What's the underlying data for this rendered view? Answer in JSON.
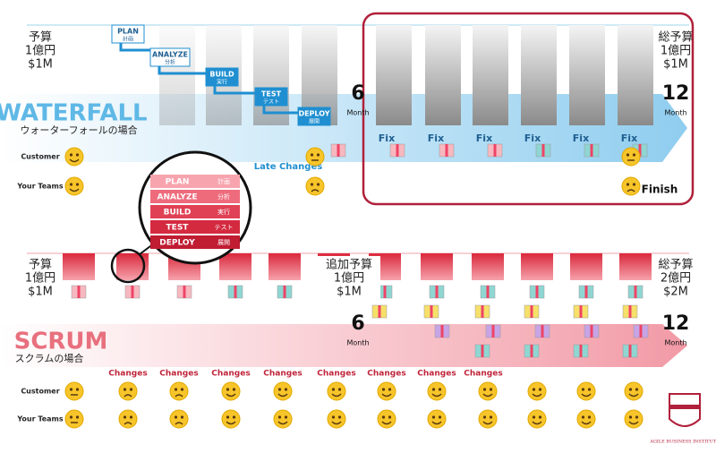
{
  "waterfall": {
    "budget_start": [
      "予算",
      "1億円",
      "$1M"
    ],
    "budget_total": [
      "総予算",
      "1億円",
      "$1M"
    ],
    "title": "WATERFALL",
    "subtitle": "ウォーターフォールの場合",
    "phases": [
      {
        "en": "PLAN",
        "ja": "計画"
      },
      {
        "en": "ANALYZE",
        "ja": "分析"
      },
      {
        "en": "BUILD",
        "ja": "実行"
      },
      {
        "en": "TEST",
        "ja": "テスト"
      },
      {
        "en": "DEPLOY",
        "ja": "展開"
      }
    ],
    "midpoint": {
      "number": "6",
      "unit": "Month"
    },
    "end": {
      "number": "12",
      "unit": "Month"
    },
    "fix_labels": [
      "Fix",
      "Fix",
      "Fix",
      "Fix",
      "Fix",
      "Fix"
    ],
    "late_changes": "Late Changes",
    "finish": "Finish",
    "rows": [
      "Customer",
      "Your Teams"
    ]
  },
  "zoom": {
    "phases": [
      {
        "en": "PLAN",
        "ja": "計画"
      },
      {
        "en": "ANALYZE",
        "ja": "分析"
      },
      {
        "en": "BUILD",
        "ja": "実行"
      },
      {
        "en": "TEST",
        "ja": "テスト"
      },
      {
        "en": "DEPLOY",
        "ja": "展開"
      }
    ]
  },
  "scrum": {
    "budget_start": [
      "予算",
      "1億円",
      "$1M"
    ],
    "budget_added": [
      "追加予算",
      "1億円",
      "$1M"
    ],
    "budget_total": [
      "総予算",
      "2億円",
      "$2M"
    ],
    "title": "SCRUM",
    "subtitle": "スクラムの場合",
    "midpoint": {
      "number": "6",
      "unit": "Month"
    },
    "end": {
      "number": "12",
      "unit": "Month"
    },
    "changes": [
      "Changes",
      "Changes",
      "Changes",
      "Changes",
      "Changes",
      "Changes",
      "Changes",
      "Changes"
    ],
    "rows": [
      "Customer",
      "Your Teams"
    ]
  },
  "logo": "AGILE BUSINESS INSTITUTE"
}
